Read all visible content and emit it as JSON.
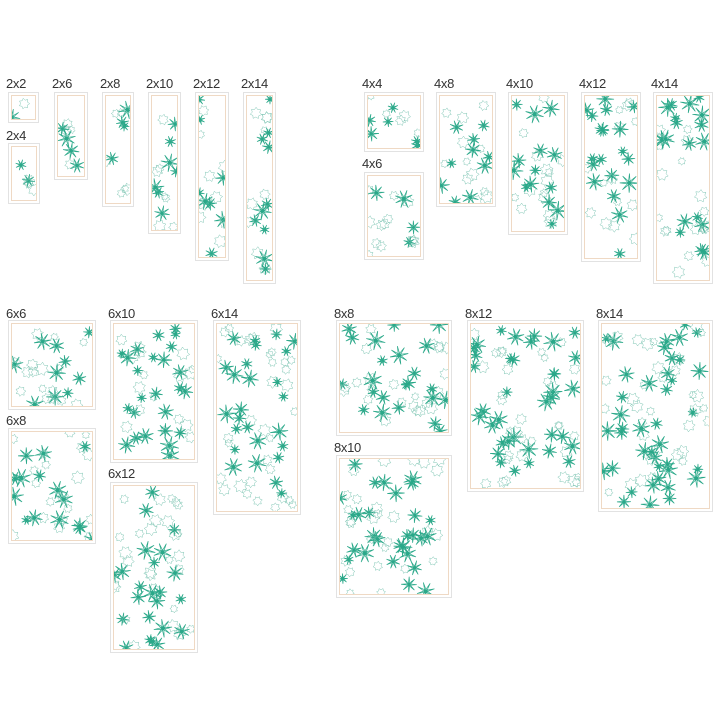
{
  "colors": {
    "star": "#2aa889",
    "outline": "#7cc4b2",
    "inner_border": "#efd9c4",
    "outer_border": "#e2e2e2"
  },
  "blocks": [
    {
      "label": "2x2"
    },
    {
      "label": "2x4"
    },
    {
      "label": "2x6"
    },
    {
      "label": "2x8"
    },
    {
      "label": "2x10"
    },
    {
      "label": "2x12"
    },
    {
      "label": "2x14"
    },
    {
      "label": "4x4"
    },
    {
      "label": "4x6"
    },
    {
      "label": "4x8"
    },
    {
      "label": "4x10"
    },
    {
      "label": "4x12"
    },
    {
      "label": "4x14"
    },
    {
      "label": "6x6"
    },
    {
      "label": "6x8"
    },
    {
      "label": "6x10"
    },
    {
      "label": "6x12"
    },
    {
      "label": "6x14"
    },
    {
      "label": "8x8"
    },
    {
      "label": "8x10"
    },
    {
      "label": "8x12"
    },
    {
      "label": "8x14"
    }
  ]
}
